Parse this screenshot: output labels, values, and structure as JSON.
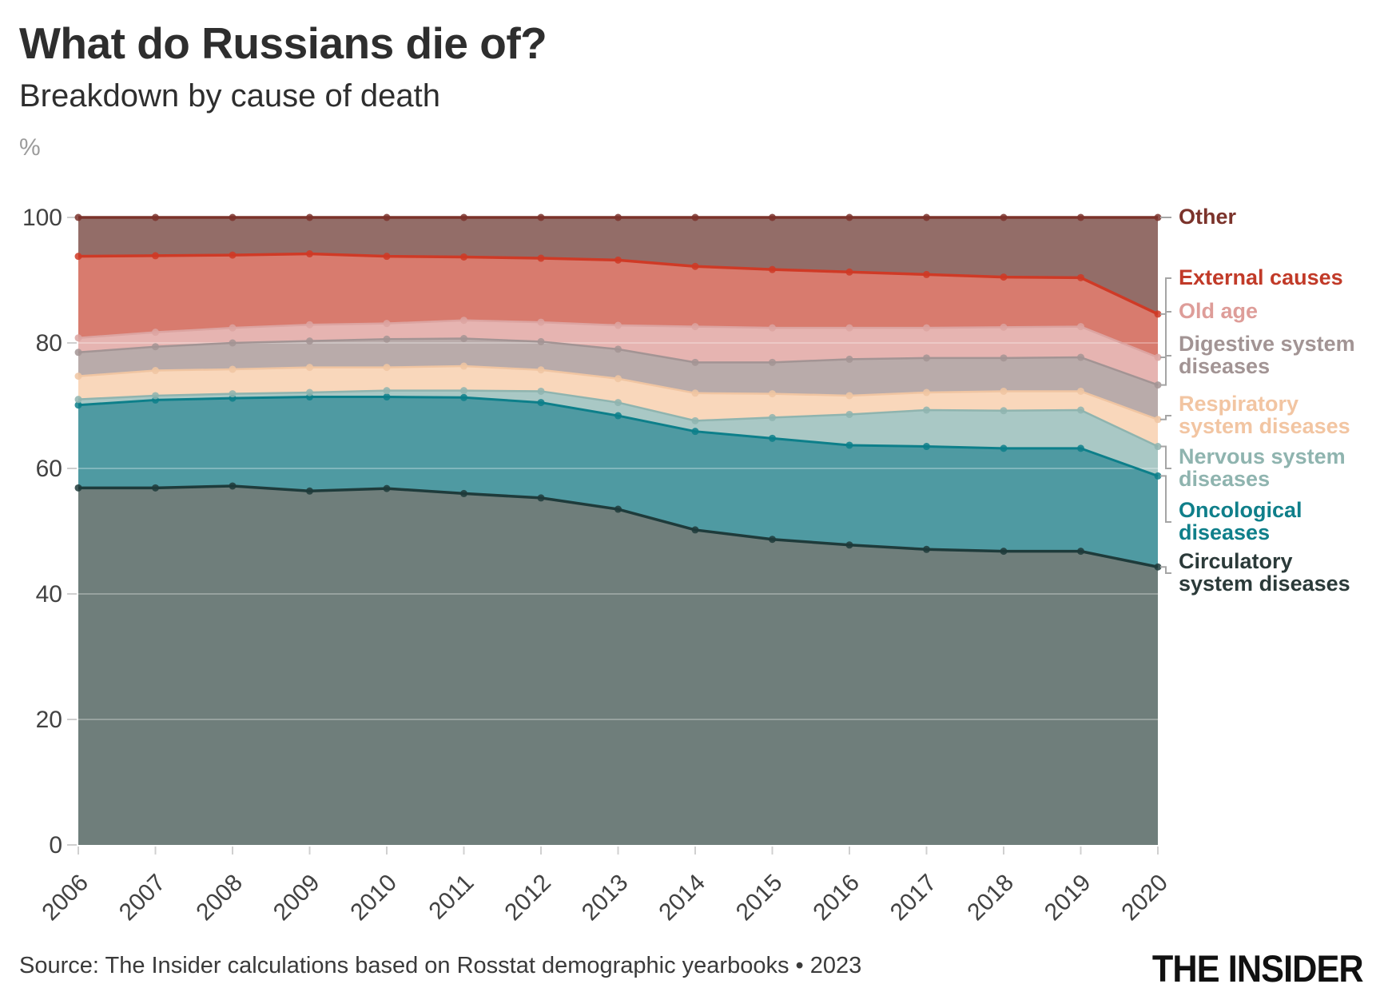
{
  "header": {
    "title": "What do Russians die of?",
    "subtitle": "Breakdown by cause of death",
    "unit_label": "%"
  },
  "footer": {
    "source": "Source: The Insider calculations based on Rosstat demographic yearbooks • 2023",
    "brand": "THE INSIDER"
  },
  "chart_data": {
    "type": "area",
    "stacked": true,
    "unit": "%",
    "title": "Breakdown by cause of death",
    "ylabel": "%",
    "ylim": [
      0,
      100
    ],
    "yticks": [
      0,
      20,
      40,
      60,
      80,
      100
    ],
    "grid": "horizontal",
    "legend_position": "right",
    "x": [
      2006,
      2007,
      2008,
      2009,
      2010,
      2011,
      2012,
      2013,
      2014,
      2015,
      2016,
      2017,
      2018,
      2019,
      2020
    ],
    "series": [
      {
        "key": "circulatory",
        "name": "Circulatory system diseases",
        "area_color": "#6f7e7b",
        "line_color": "#1e3b3b",
        "line_width": 3.5,
        "values": [
          56.9,
          56.9,
          57.2,
          56.4,
          56.8,
          56.0,
          55.3,
          53.5,
          50.2,
          48.7,
          47.8,
          47.1,
          46.8,
          46.8,
          44.3
        ]
      },
      {
        "key": "oncological",
        "name": "Oncological diseases",
        "area_color": "#4f9aa2",
        "line_color": "#0d7f8a",
        "line_width": 3,
        "values": [
          13.2,
          14.0,
          14.0,
          15.0,
          14.6,
          15.3,
          15.2,
          14.9,
          15.7,
          16.1,
          15.9,
          16.4,
          16.4,
          16.4,
          14.5
        ]
      },
      {
        "key": "nervous",
        "name": "Nervous system diseases",
        "area_color": "#a9c8c5",
        "line_color": "#8fb4af",
        "line_width": 2.5,
        "values": [
          0.9,
          0.7,
          0.7,
          0.7,
          1.0,
          1.1,
          1.8,
          2.1,
          1.7,
          3.3,
          4.9,
          5.8,
          6.0,
          6.1,
          4.7
        ]
      },
      {
        "key": "respiratory",
        "name": "Respiratory system diseases",
        "area_color": "#f9d7bb",
        "line_color": "#f0c5a2",
        "line_width": 2.5,
        "values": [
          3.7,
          4.0,
          3.9,
          4.0,
          3.7,
          3.9,
          3.4,
          3.8,
          4.4,
          3.8,
          3.0,
          2.8,
          3.1,
          3.0,
          4.3
        ]
      },
      {
        "key": "digestive",
        "name": "Digestive system diseases",
        "area_color": "#b9abaa",
        "line_color": "#a39494",
        "line_width": 2.5,
        "values": [
          3.8,
          3.8,
          4.2,
          4.2,
          4.5,
          4.4,
          4.5,
          4.7,
          4.9,
          5.0,
          5.8,
          5.5,
          5.3,
          5.4,
          5.5
        ]
      },
      {
        "key": "old_age",
        "name": "Old age",
        "area_color": "#e6b4b1",
        "line_color": "#dca4a1",
        "line_width": 2.5,
        "values": [
          2.3,
          2.3,
          2.4,
          2.6,
          2.5,
          2.9,
          3.1,
          3.8,
          5.7,
          5.5,
          5.0,
          4.8,
          4.9,
          4.9,
          4.4
        ]
      },
      {
        "key": "external",
        "name": "External causes",
        "area_color": "#d87b6e",
        "line_color": "#cf3a26",
        "line_width": 3.5,
        "values": [
          13.0,
          12.2,
          11.6,
          11.3,
          10.7,
          10.1,
          10.2,
          10.4,
          9.6,
          9.3,
          8.9,
          8.5,
          8.0,
          7.8,
          6.9
        ]
      },
      {
        "key": "other",
        "name": "Other",
        "area_color": "#936d68",
        "line_color": "#7b332b",
        "line_width": 3.5,
        "values": [
          6.2,
          6.1,
          6.0,
          5.8,
          6.2,
          6.3,
          6.5,
          6.8,
          7.8,
          8.3,
          8.7,
          9.1,
          9.5,
          9.6,
          15.4
        ]
      }
    ],
    "legend": [
      {
        "series": "other",
        "label": "Other",
        "color": "#7b332b"
      },
      {
        "series": "external",
        "label": "External causes",
        "color": "#c13a28"
      },
      {
        "series": "old_age",
        "label": "Old age",
        "color": "#de9d99"
      },
      {
        "series": "digestive",
        "label": "Digestive system\ndiseases",
        "color": "#a29494"
      },
      {
        "series": "respiratory",
        "label": "Respiratory\nsystem diseases",
        "color": "#f2c5a2"
      },
      {
        "series": "nervous",
        "label": "Nervous system\ndiseases",
        "color": "#8fb4af"
      },
      {
        "series": "oncological",
        "label": "Oncological\ndiseases",
        "color": "#0f7f8a"
      },
      {
        "series": "circulatory",
        "label": "Circulatory\nsystem diseases",
        "color": "#2b3a39"
      }
    ]
  }
}
